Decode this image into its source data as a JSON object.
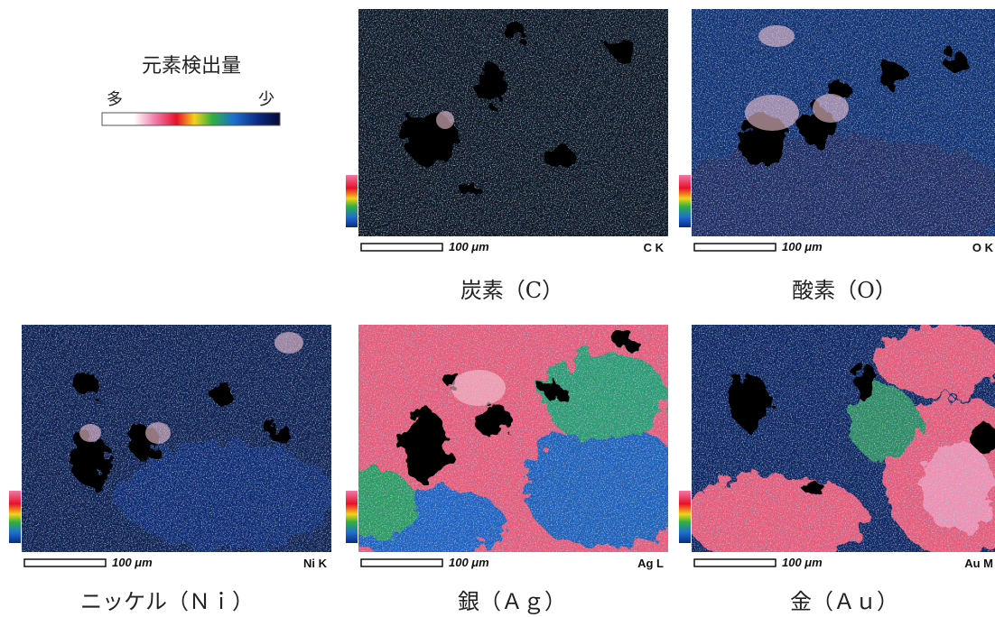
{
  "legend": {
    "title": "元素検出量",
    "high": "多",
    "low": "少"
  },
  "panels": [
    {
      "scale_label": "100 μm",
      "line_label": "C K",
      "caption": "炭素（C）"
    },
    {
      "scale_label": "100 μm",
      "line_label": "O K",
      "caption": "酸素（O）"
    },
    {
      "scale_label": "100 μm",
      "line_label": "Ni K",
      "caption": "ニッケル（Ｎｉ）"
    },
    {
      "scale_label": "100 μm",
      "line_label": "Ag L",
      "caption": "銀（Ａｇ）"
    },
    {
      "scale_label": "100 μm",
      "line_label": "Au M",
      "caption": "金（Ａｕ）"
    }
  ]
}
